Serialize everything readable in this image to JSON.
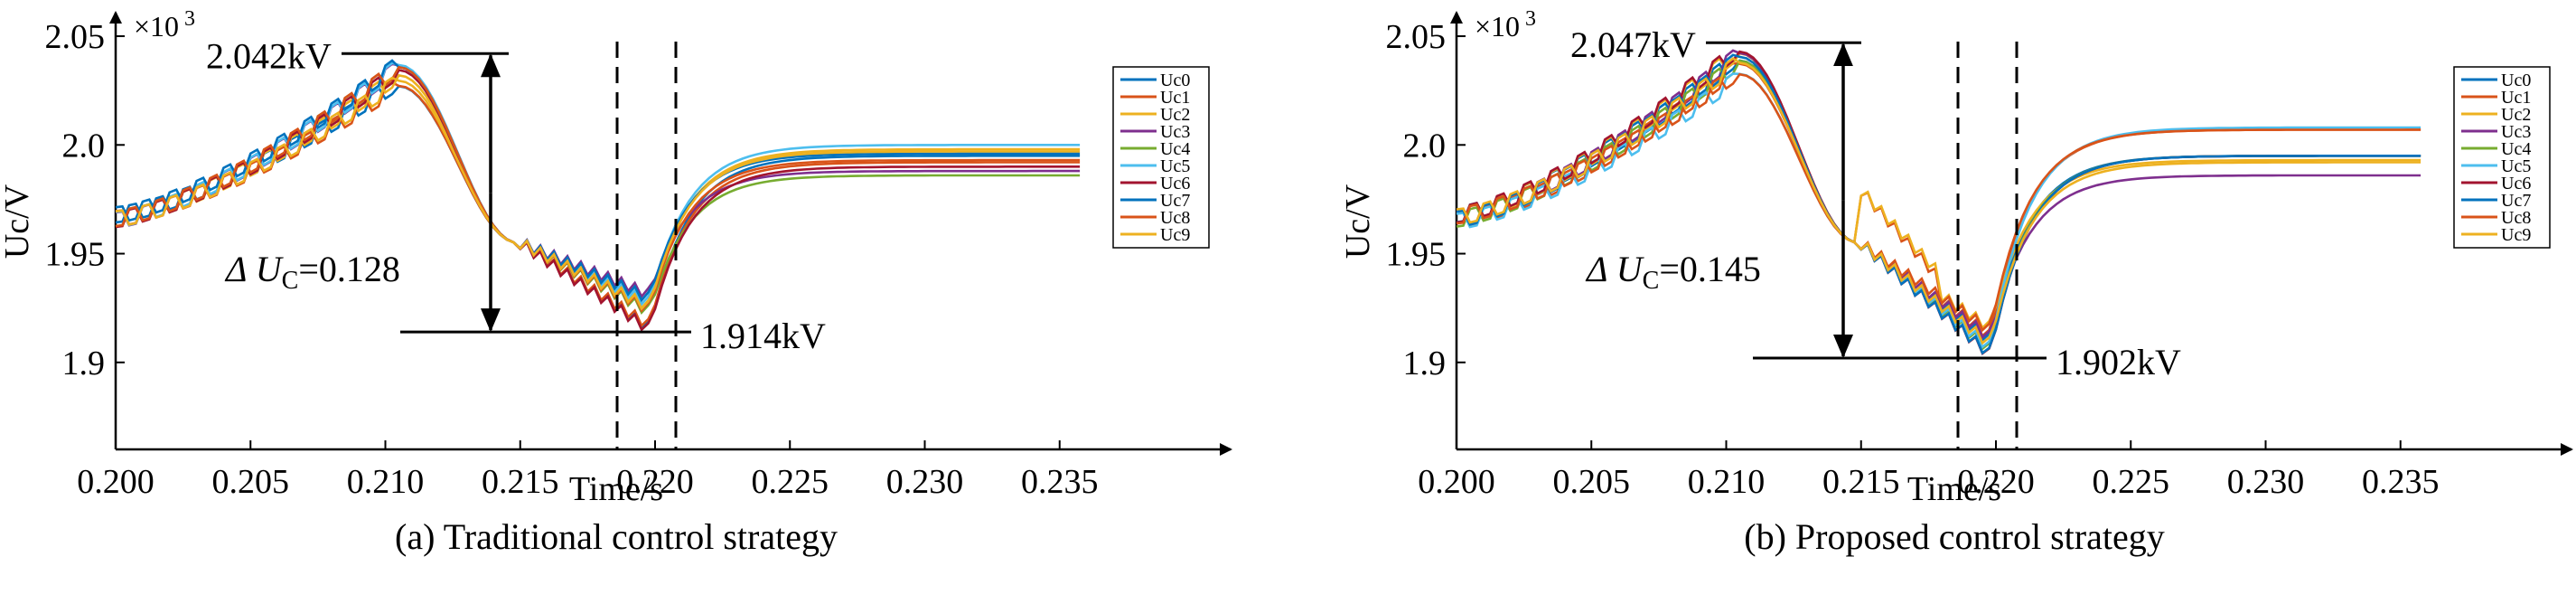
{
  "chart_data": [
    {
      "type": "line",
      "caption": "(a) Traditional control strategy",
      "xlabel": "Time/s",
      "ylabel": "Uc/V",
      "y_exponent": "×10",
      "y_exponent_power": "3",
      "xlim": [
        0.2,
        0.24
      ],
      "ylim": [
        1.86,
        2.055
      ],
      "xticks": [
        "0.200",
        "0.205",
        "0.210",
        "0.215",
        "0.220",
        "0.225",
        "0.230",
        "0.235"
      ],
      "yticks": [
        "1.9",
        "1.95",
        "2.0",
        "2.05"
      ],
      "legend": [
        "Uc0",
        "Uc1",
        "Uc2",
        "Uc3",
        "Uc4",
        "Uc5",
        "Uc6",
        "Uc7",
        "Uc8",
        "Uc9"
      ],
      "legend_position": "right",
      "series_colors": [
        "#0072BD",
        "#D95319",
        "#EDB120",
        "#7E2F8E",
        "#77AC30",
        "#4DBEEE",
        "#A2142F",
        "#0072BD",
        "#D95319",
        "#EDB120"
      ],
      "peak_x": 0.2105,
      "trough_x": 0.2198,
      "peak": 2.042,
      "trough": 1.914,
      "vlines_x": [
        0.2175,
        0.2197
      ],
      "final_values": [
        1.995,
        1.992,
        1.998,
        1.988,
        1.986,
        2.0,
        1.99,
        1.996,
        1.993,
        1.997
      ],
      "annotations": {
        "peak_label": "2.042kV",
        "trough_label": "1.914kV",
        "delta_prefix": "Δ U",
        "delta_sub": "C",
        "delta_value": "=0.128"
      }
    },
    {
      "type": "line",
      "caption": "(b) Proposed control strategy",
      "xlabel": "Time/s",
      "ylabel": "Uc/V",
      "y_exponent": "×10",
      "y_exponent_power": "3",
      "xlim": [
        0.2,
        0.24
      ],
      "ylim": [
        1.86,
        2.055
      ],
      "xticks": [
        "0.200",
        "0.205",
        "0.210",
        "0.215",
        "0.220",
        "0.225",
        "0.230",
        "0.235"
      ],
      "yticks": [
        "1.9",
        "1.95",
        "2.0",
        "2.05"
      ],
      "legend": [
        "Uc0",
        "Uc1",
        "Uc2",
        "Uc3",
        "Uc4",
        "Uc5",
        "Uc6",
        "Uc7",
        "Uc8",
        "Uc9"
      ],
      "legend_position": "right",
      "series_colors": [
        "#0072BD",
        "#D95319",
        "#EDB120",
        "#7E2F8E",
        "#77AC30",
        "#4DBEEE",
        "#A2142F",
        "#0072BD",
        "#D95319",
        "#EDB120"
      ],
      "peak_x": 0.2105,
      "trough_x": 0.2198,
      "peak": 2.047,
      "trough": 1.902,
      "vlines_x": [
        0.2175,
        0.2198
      ],
      "final_values": [
        1.995,
        2.007,
        1.993,
        1.986,
        1.995,
        2.008,
        1.995,
        1.995,
        2.007,
        1.992
      ],
      "annotations": {
        "peak_label": "2.047kV",
        "trough_label": "1.902kV",
        "delta_prefix": "Δ U",
        "delta_sub": "C",
        "delta_value": "=0.145"
      }
    }
  ]
}
